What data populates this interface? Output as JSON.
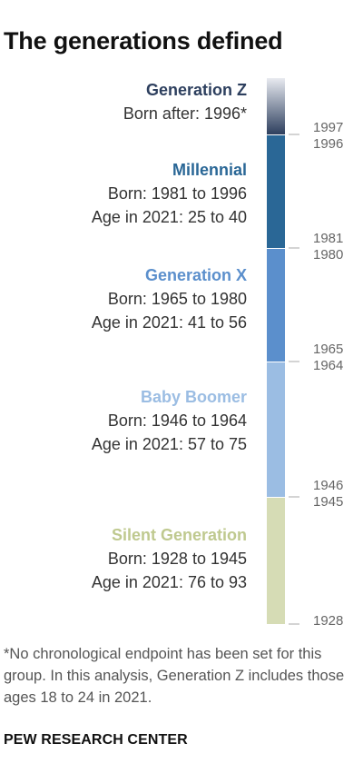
{
  "title": "The generations defined",
  "chart_data": {
    "type": "bar",
    "orientation": "vertical stacked timeline",
    "axis": {
      "min": 1928,
      "max": 1997,
      "direction": "descending (newest at top)"
    },
    "series": [
      {
        "name": "Generation Z",
        "start": 1997,
        "end": null,
        "born": "Born after: 1996*",
        "age": "",
        "color": "#2d3f5e",
        "color_light": "#e8eaf0"
      },
      {
        "name": "Millennial",
        "start": 1981,
        "end": 1996,
        "born": "Born: 1981 to 1996",
        "age": "Age in 2021: 25 to 40",
        "color": "#2a6796"
      },
      {
        "name": "Generation X",
        "start": 1965,
        "end": 1980,
        "born": "Born: 1965 to 1980",
        "age": "Age in 2021: 41 to 56",
        "color": "#5b8fcc"
      },
      {
        "name": "Baby Boomer",
        "start": 1946,
        "end": 1964,
        "born": "Born: 1946 to 1964",
        "age": "Age in 2021: 57 to 75",
        "color": "#9bbde3"
      },
      {
        "name": "Silent Generation",
        "start": 1928,
        "end": 1945,
        "born": "Born: 1928 to 1945",
        "age": "Age in 2021: 76 to 93",
        "color": "#d6dcb5"
      }
    ],
    "label_colors": {
      "Generation Z": "#2d3f5e",
      "Millennial": "#2a6796",
      "Generation X": "#5b8fcc",
      "Baby Boomer": "#9bbde3",
      "Silent Generation": "#bfc98f"
    },
    "tick_labels": [
      "1997",
      "1996",
      "1981",
      "1980",
      "1965",
      "1964",
      "1946",
      "1945",
      "1928"
    ]
  },
  "note": "*No chronological endpoint has been set for this group. In this analysis, Generation Z includes those ages 18 to 24 in 2021.",
  "source": "PEW RESEARCH CENTER"
}
